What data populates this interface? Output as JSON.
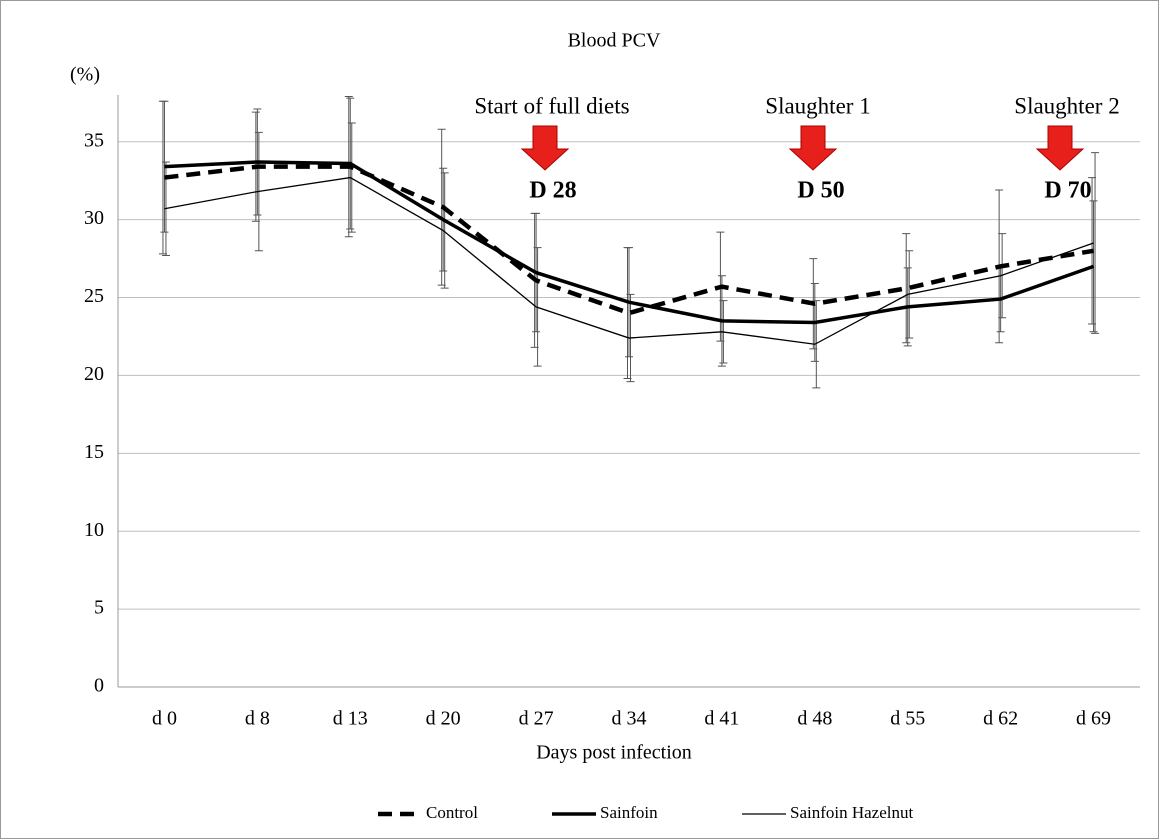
{
  "chart_data": {
    "type": "line",
    "title": "Blood PCV",
    "y_label": "(%)",
    "x_label": "Days post infection",
    "categories": [
      "d 0",
      "d 8",
      "d 13",
      "d 20",
      "d 27",
      "d 34",
      "d 41",
      "d 48",
      "d 55",
      "d 62",
      "d 69"
    ],
    "series": [
      {
        "name": "Control",
        "color": "#000000",
        "style": "dashed",
        "values": [
          32.7,
          33.4,
          33.4,
          30.8,
          26.1,
          24.0,
          25.7,
          24.6,
          25.6,
          27.0,
          28.0
        ],
        "errors": [
          4.9,
          3.5,
          4.5,
          5.0,
          4.3,
          4.2,
          3.5,
          2.9,
          3.5,
          4.9,
          4.7
        ]
      },
      {
        "name": "Sainfoin",
        "color": "#000000",
        "style": "thick",
        "values": [
          33.4,
          33.7,
          33.6,
          30.0,
          26.6,
          24.7,
          23.5,
          23.4,
          24.4,
          24.9,
          27.0
        ],
        "errors": [
          4.2,
          3.4,
          4.2,
          3.3,
          3.8,
          3.5,
          2.9,
          2.5,
          2.5,
          2.1,
          4.2
        ]
      },
      {
        "name": "Sainfoin Hazelnut",
        "color": "#000000",
        "style": "thin",
        "values": [
          30.7,
          31.8,
          32.7,
          29.3,
          24.4,
          22.4,
          22.8,
          22.0,
          25.2,
          26.4,
          28.5
        ],
        "errors": [
          3.0,
          3.8,
          3.5,
          3.7,
          3.8,
          2.8,
          2.0,
          2.8,
          2.8,
          2.7,
          5.8
        ]
      }
    ],
    "annotations": [
      {
        "text": "Start of full diets",
        "day": "D 28"
      },
      {
        "text": "Slaughter 1",
        "day": "D 50"
      },
      {
        "text": "Slaughter 2",
        "day": "D 70"
      }
    ],
    "ylim": [
      0,
      38
    ],
    "yticks": [
      0,
      5,
      10,
      15,
      20,
      25,
      30,
      35
    ],
    "grid": true,
    "legend": "bottom"
  }
}
